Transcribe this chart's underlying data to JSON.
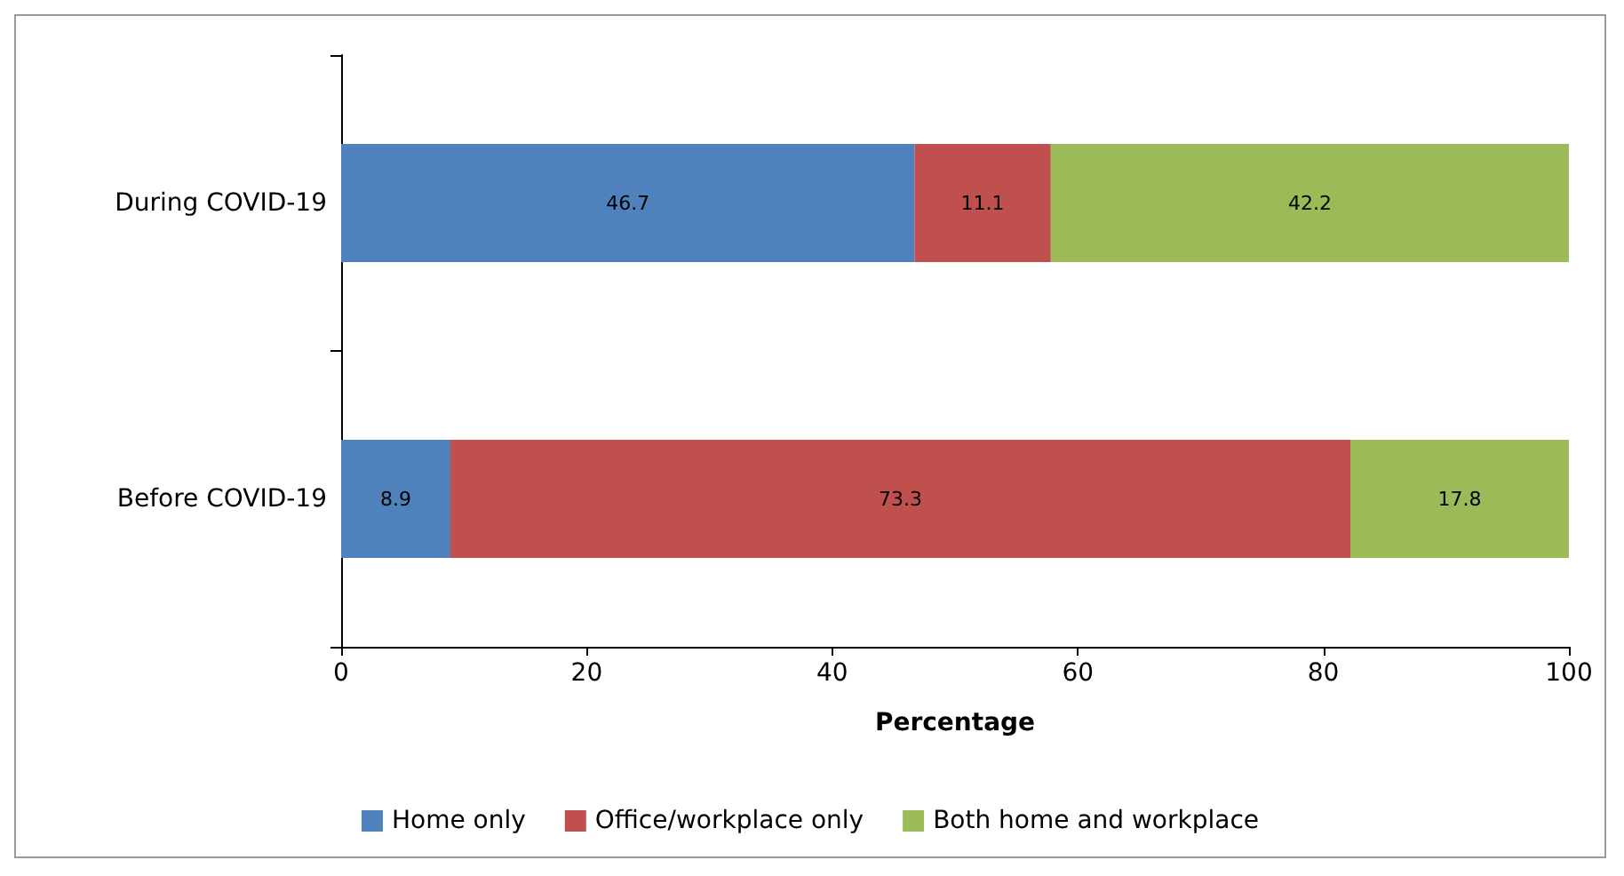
{
  "chart_data": {
    "type": "bar",
    "orientation": "horizontal",
    "stacked": true,
    "categories": [
      "During COVID-19",
      "Before COVID-19"
    ],
    "series": [
      {
        "name": "Home only",
        "color": "#4f81bd",
        "values": [
          46.7,
          8.9
        ]
      },
      {
        "name": "Office/workplace only",
        "color": "#c0504d",
        "values": [
          11.1,
          73.3
        ]
      },
      {
        "name": "Both home and workplace",
        "color": "#9bbb59",
        "values": [
          42.2,
          17.8
        ]
      }
    ],
    "xlabel": "Percentage",
    "xlim": [
      0,
      100
    ],
    "xticks": [
      0,
      20,
      40,
      60,
      80,
      100
    ],
    "data_labels": true,
    "legend": "bottom",
    "grid": false
  }
}
